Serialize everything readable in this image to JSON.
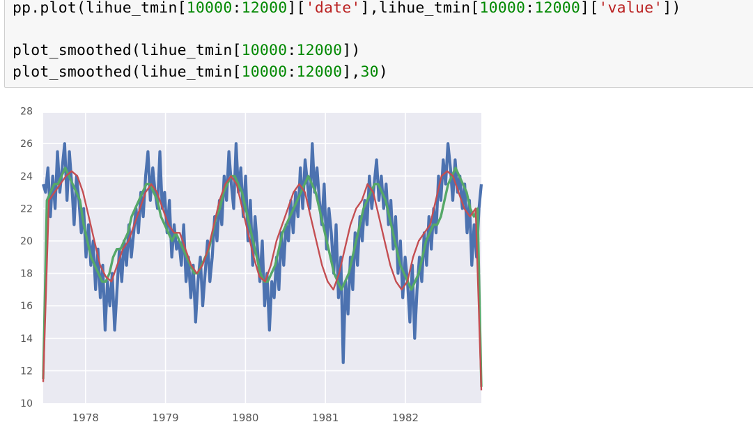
{
  "code_cell": {
    "lines": [
      [
        {
          "t": "pp.plot(lihue_tmin[",
          "c": "plain"
        },
        {
          "t": "10000",
          "c": "num"
        },
        {
          "t": ":",
          "c": "plain"
        },
        {
          "t": "12000",
          "c": "num"
        },
        {
          "t": "][",
          "c": "plain"
        },
        {
          "t": "'date'",
          "c": "str"
        },
        {
          "t": "],lihue_tmin[",
          "c": "plain"
        },
        {
          "t": "10000",
          "c": "num"
        },
        {
          "t": ":",
          "c": "plain"
        },
        {
          "t": "12000",
          "c": "num"
        },
        {
          "t": "][",
          "c": "plain"
        },
        {
          "t": "'value'",
          "c": "str"
        },
        {
          "t": "])",
          "c": "plain"
        }
      ],
      [],
      [
        {
          "t": "plot_smoothed(lihue_tmin[",
          "c": "plain"
        },
        {
          "t": "10000",
          "c": "num"
        },
        {
          "t": ":",
          "c": "plain"
        },
        {
          "t": "12000",
          "c": "num"
        },
        {
          "t": "])",
          "c": "plain"
        }
      ],
      [
        {
          "t": "plot_smoothed(lihue_tmin[",
          "c": "plain"
        },
        {
          "t": "10000",
          "c": "num"
        },
        {
          "t": ":",
          "c": "plain"
        },
        {
          "t": "12000",
          "c": "num"
        },
        {
          "t": "],",
          "c": "plain"
        },
        {
          "t": "30",
          "c": "num"
        },
        {
          "t": ")",
          "c": "plain"
        }
      ]
    ]
  },
  "colors": {
    "plot_bg": "#eaeaf2",
    "grid": "#ffffff",
    "raw": "#4c72b0",
    "smoothed": "#55a868",
    "smoothed_30": "#c44e52",
    "tick_text": "#555555",
    "code_num": "#008800",
    "code_str": "#ba2121"
  },
  "chart_data": {
    "type": "line",
    "title": "",
    "xlabel": "",
    "ylabel": "",
    "xlim": [
      1977.47,
      1982.95
    ],
    "ylim": [
      10,
      28
    ],
    "x_ticks": [
      1978,
      1979,
      1980,
      1981,
      1982
    ],
    "x_tick_labels": [
      "1978",
      "1979",
      "1980",
      "1981",
      "1982"
    ],
    "y_ticks": [
      10,
      12,
      14,
      16,
      18,
      20,
      22,
      24,
      26,
      28
    ],
    "y_tick_labels": [
      "10",
      "12",
      "14",
      "16",
      "18",
      "20",
      "22",
      "24",
      "26",
      "28"
    ],
    "grid": true,
    "legend": "none",
    "series": [
      {
        "style": "raw",
        "x_start": 1977.47,
        "x_end": 1982.95,
        "values": [
          23.5,
          23.0,
          24.5,
          21.5,
          24.0,
          22.0,
          25.5,
          23.0,
          24.5,
          26.0,
          22.5,
          25.5,
          23.5,
          21.0,
          24.0,
          22.5,
          20.5,
          22.0,
          19.0,
          21.0,
          18.5,
          20.0,
          17.0,
          19.5,
          16.5,
          18.5,
          14.5,
          17.5,
          16.0,
          18.0,
          14.5,
          17.0,
          19.5,
          17.5,
          20.0,
          18.5,
          21.0,
          19.0,
          20.5,
          22.0,
          20.5,
          23.0,
          21.5,
          24.0,
          25.5,
          22.5,
          24.5,
          23.0,
          22.0,
          25.5,
          22.0,
          23.0,
          20.5,
          22.5,
          19.0,
          21.0,
          19.5,
          20.0,
          18.5,
          21.0,
          17.5,
          19.0,
          16.5,
          18.5,
          15.0,
          17.5,
          19.0,
          16.0,
          18.0,
          20.0,
          17.5,
          19.0,
          21.5,
          20.0,
          22.5,
          21.0,
          24.0,
          22.5,
          25.5,
          23.5,
          22.0,
          26.0,
          23.0,
          24.5,
          21.5,
          24.0,
          20.0,
          22.5,
          18.5,
          21.5,
          19.5,
          17.5,
          20.0,
          16.0,
          18.0,
          14.5,
          17.5,
          16.5,
          19.0,
          17.0,
          20.5,
          18.5,
          21.0,
          20.0,
          22.5,
          20.5,
          23.0,
          21.5,
          24.5,
          22.0,
          25.0,
          23.5,
          22.0,
          26.0,
          23.0,
          24.5,
          22.5,
          21.0,
          23.5,
          19.5,
          22.0,
          20.5,
          18.0,
          21.0,
          16.5,
          19.0,
          12.5,
          17.5,
          15.5,
          19.0,
          17.0,
          20.5,
          18.5,
          21.5,
          20.0,
          22.5,
          21.0,
          24.0,
          22.0,
          23.5,
          25.0,
          22.5,
          24.0,
          22.0,
          23.5,
          21.0,
          22.5,
          19.5,
          21.5,
          18.0,
          20.0,
          16.5,
          19.0,
          17.5,
          15.0,
          18.5,
          14.0,
          17.0,
          19.0,
          17.5,
          20.5,
          18.5,
          21.5,
          19.5,
          22.0,
          20.5,
          24.0,
          22.5,
          25.0,
          23.5,
          26.0,
          24.5,
          22.5,
          25.0,
          23.0,
          24.0,
          22.0,
          23.5,
          20.5,
          22.5,
          18.5,
          21.0,
          19.0,
          22.0,
          23.5
        ]
      },
      {
        "style": "smoothed",
        "x_start": 1977.47,
        "x_end": 1982.95,
        "values": [
          11.5,
          22.5,
          23.0,
          23.5,
          23.5,
          24.0,
          24.5,
          24.0,
          23.5,
          23.0,
          22.5,
          21.0,
          20.0,
          19.0,
          18.5,
          18.0,
          17.5,
          17.5,
          18.0,
          19.0,
          19.5,
          19.5,
          20.0,
          20.5,
          21.5,
          22.0,
          22.5,
          23.0,
          23.5,
          23.5,
          23.0,
          22.5,
          21.5,
          21.0,
          20.5,
          20.0,
          20.5,
          20.0,
          19.5,
          19.0,
          18.5,
          18.0,
          18.0,
          18.5,
          19.0,
          19.5,
          20.5,
          21.5,
          22.0,
          23.0,
          23.5,
          24.0,
          24.0,
          23.5,
          23.0,
          22.0,
          21.0,
          20.0,
          19.0,
          18.0,
          17.5,
          17.5,
          18.0,
          18.5,
          19.5,
          20.5,
          21.0,
          21.5,
          22.0,
          22.5,
          23.0,
          23.5,
          24.0,
          23.5,
          23.0,
          22.0,
          21.0,
          20.0,
          19.0,
          18.0,
          17.5,
          17.0,
          17.5,
          18.0,
          19.0,
          20.0,
          21.0,
          22.0,
          22.5,
          23.0,
          23.5,
          23.5,
          23.0,
          22.5,
          21.5,
          20.5,
          19.5,
          18.5,
          18.0,
          17.5,
          17.0,
          17.5,
          18.0,
          19.0,
          20.0,
          20.5,
          21.0,
          21.0,
          21.5,
          22.5,
          23.5,
          24.0,
          24.5,
          24.0,
          23.5,
          23.0,
          22.0,
          21.5,
          22.0,
          11.0
        ]
      },
      {
        "style": "smoothed_30",
        "x_start": 1977.47,
        "x_end": 1982.95,
        "values": [
          11.3,
          22.5,
          23.0,
          23.5,
          24.0,
          24.3,
          24.0,
          23.0,
          21.5,
          20.0,
          18.5,
          17.8,
          17.5,
          18.5,
          19.5,
          20.0,
          21.0,
          22.0,
          23.0,
          23.5,
          23.0,
          22.0,
          21.0,
          20.5,
          20.5,
          19.5,
          18.5,
          18.0,
          18.5,
          19.5,
          21.0,
          22.5,
          23.5,
          24.0,
          23.5,
          22.0,
          20.5,
          19.0,
          17.8,
          17.5,
          18.5,
          20.0,
          21.0,
          22.0,
          23.0,
          23.5,
          23.0,
          21.5,
          20.0,
          18.5,
          17.5,
          17.0,
          18.0,
          19.5,
          21.0,
          22.0,
          22.5,
          23.5,
          23.0,
          21.5,
          20.0,
          18.5,
          17.5,
          17.0,
          17.5,
          19.0,
          20.0,
          20.5,
          21.0,
          22.5,
          24.0,
          24.3,
          24.0,
          23.0,
          22.0,
          21.5,
          22.0,
          10.8
        ]
      }
    ]
  }
}
